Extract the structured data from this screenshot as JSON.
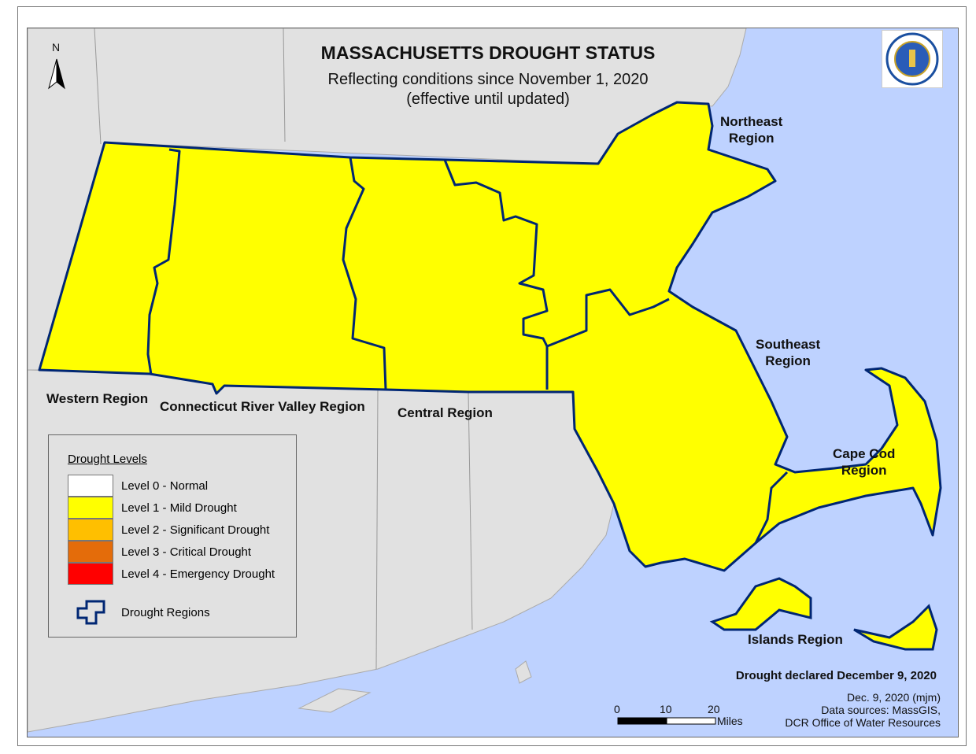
{
  "map": {
    "title": "MASSACHUSETTS DROUGHT STATUS",
    "subtitle": "Reflecting conditions since November 1, 2020",
    "subtitle2": "(effective until updated)",
    "north_label": "N",
    "regions": [
      {
        "name": "Western Region",
        "level": 1
      },
      {
        "name": "Connecticut River Valley Region",
        "level": 1
      },
      {
        "name": "Central Region",
        "level": 1
      },
      {
        "name": "Northeast Region",
        "level": 1
      },
      {
        "name": "Southeast Region",
        "level": 1
      },
      {
        "name": "Cape Cod Region",
        "level": 1
      },
      {
        "name": "Islands Region",
        "level": 1
      }
    ],
    "region_labels": {
      "northeast_1": "Northeast",
      "northeast_2": "Region",
      "southeast_1": "Southeast",
      "southeast_2": "Region",
      "capecod_1": "Cape Cod",
      "capecod_2": "Region",
      "western": "Western Region",
      "crv": "Connecticut River Valley Region",
      "central": "Central Region",
      "islands": "Islands Region"
    },
    "declared": "Drought declared December 9, 2020",
    "credit_date": "Dec. 9, 2020 (mjm)",
    "credit_sources_1": "Data sources: MassGIS,",
    "credit_sources_2": "DCR Office of Water Resources",
    "scale": {
      "ticks": [
        "0",
        "10",
        "20"
      ],
      "unit": "Miles"
    },
    "colors": {
      "water": "#bed2ff",
      "land": "#e1e1e1",
      "boundary": "#002673"
    }
  },
  "legend": {
    "title": "Drought Levels",
    "items": [
      {
        "label": "Level 0 - Normal",
        "color": "#ffffff"
      },
      {
        "label": "Level 1 - Mild Drought",
        "color": "#ffff00"
      },
      {
        "label": "Level 2 - Significant Drought",
        "color": "#ffbf00"
      },
      {
        "label": "Level 3 - Critical Drought",
        "color": "#e46c0a"
      },
      {
        "label": "Level 4 - Emergency Drought",
        "color": "#ff0000"
      }
    ],
    "regions_label": "Drought Regions"
  },
  "seal": {
    "text": "SIGILLUM REIPUBLICAE MASSACHUSETTENSIS"
  }
}
